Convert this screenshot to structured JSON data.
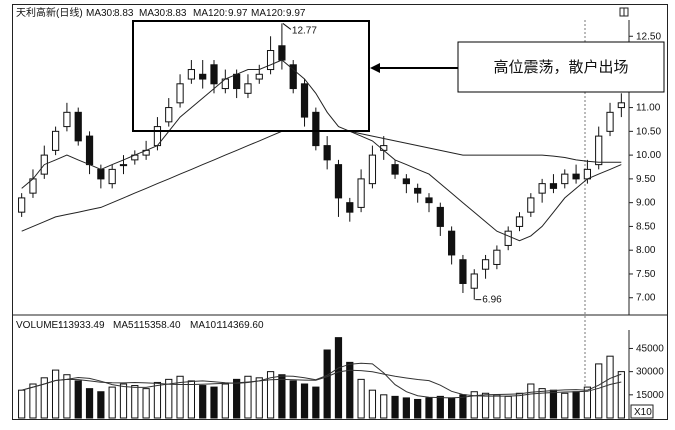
{
  "header": {
    "stock_name": "天利高新(日线)",
    "ma_items": [
      {
        "label": "MA30:",
        "value": "8.83"
      },
      {
        "label": "MA30:",
        "value": "8.83"
      },
      {
        "label": "MA120:",
        "value": "9.97"
      },
      {
        "label": "MA120:",
        "value": "9.97"
      }
    ]
  },
  "price_axis": {
    "ticks": [
      "12.50",
      "12.00",
      "11.50",
      "11.00",
      "10.50",
      "10.00",
      "9.50",
      "9.00",
      "8.50",
      "8.00",
      "7.50",
      "7.00"
    ],
    "high_label": "12.77",
    "low_label": "6.96"
  },
  "annotation": {
    "text": "高位震荡，散户出场"
  },
  "volume_header": {
    "items": [
      {
        "label": "VOLUME:",
        "value": "113933.49"
      },
      {
        "label": "MA5:",
        "value": "115358.40"
      },
      {
        "label": "MA10:",
        "value": "114369.60"
      }
    ]
  },
  "volume_axis": {
    "ticks": [
      "45000",
      "30000",
      "15000"
    ],
    "multiplier": "X10"
  },
  "chart_data": [
    {
      "type": "candlestick",
      "title": "天利高新(日线)",
      "ylim": [
        6.7,
        12.8
      ],
      "moving_averages": [
        {
          "name": "MA30",
          "value": 8.83,
          "values": [
            9.3,
            9.5,
            9.8,
            9.9,
            10.0,
            9.9,
            9.8,
            9.7,
            9.8,
            9.9,
            10.0,
            10.1,
            10.2,
            10.5,
            10.8,
            11.0,
            11.2,
            11.4,
            11.6,
            11.7,
            11.8,
            11.8,
            11.9,
            12.0,
            11.8,
            11.6,
            11.3,
            10.9,
            10.6,
            10.5,
            10.4,
            10.3,
            10.1,
            9.9,
            9.8,
            9.7,
            9.6,
            9.4,
            9.2,
            9.0,
            8.8,
            8.6,
            8.4,
            8.3,
            8.2,
            8.3,
            8.5,
            8.8,
            9.1,
            9.3,
            9.5,
            9.6,
            9.7,
            9.8
          ]
        },
        {
          "name": "MA120",
          "value": 9.97,
          "values": [
            8.4,
            8.5,
            8.6,
            8.7,
            8.75,
            8.8,
            8.85,
            8.9,
            9.0,
            9.1,
            9.2,
            9.3,
            9.4,
            9.5,
            9.6,
            9.7,
            9.8,
            9.9,
            10.0,
            10.1,
            10.2,
            10.3,
            10.4,
            10.5,
            10.5,
            10.5,
            10.5,
            10.5,
            10.5,
            10.5,
            10.45,
            10.4,
            10.35,
            10.3,
            10.25,
            10.2,
            10.15,
            10.1,
            10.05,
            10.0,
            10.0,
            10.0,
            10.0,
            10.0,
            10.0,
            10.0,
            10.0,
            9.98,
            9.95,
            9.9,
            9.87,
            9.85,
            9.85,
            9.85
          ]
        }
      ],
      "annotations": [
        "12.77",
        "6.96",
        "高位震荡，散户出场"
      ],
      "x": [
        1,
        2,
        3,
        4,
        5,
        6,
        7,
        8,
        9,
        10,
        11,
        12,
        13,
        14,
        15,
        16,
        17,
        18,
        19,
        20,
        21,
        22,
        23,
        24,
        25,
        26,
        27,
        28,
        29,
        30,
        31,
        32,
        33,
        34,
        35,
        36,
        37,
        38,
        39,
        40,
        41,
        42,
        43,
        44,
        45,
        46,
        47,
        48,
        49,
        50,
        51,
        52,
        53,
        54
      ],
      "open": [
        8.8,
        9.2,
        9.6,
        10.1,
        10.6,
        10.9,
        10.4,
        9.7,
        9.4,
        9.8,
        9.9,
        10.0,
        10.2,
        10.7,
        11.1,
        11.6,
        11.7,
        11.9,
        11.4,
        11.7,
        11.3,
        11.6,
        11.8,
        12.3,
        11.9,
        11.5,
        10.9,
        10.2,
        9.8,
        9.0,
        8.9,
        9.4,
        10.1,
        9.8,
        9.5,
        9.3,
        9.1,
        8.9,
        8.4,
        7.8,
        7.2,
        7.6,
        7.7,
        8.1,
        8.5,
        8.8,
        9.2,
        9.4,
        9.4,
        9.6,
        9.5,
        9.8,
        10.5,
        11.0
      ],
      "close": [
        9.1,
        9.5,
        10.0,
        10.5,
        10.9,
        10.3,
        9.8,
        9.5,
        9.7,
        9.8,
        10.0,
        10.1,
        10.6,
        11.0,
        11.5,
        11.8,
        11.6,
        11.5,
        11.6,
        11.4,
        11.5,
        11.7,
        12.2,
        12.0,
        11.4,
        10.8,
        10.2,
        9.9,
        9.1,
        8.8,
        9.5,
        10.0,
        10.2,
        9.6,
        9.4,
        9.2,
        9.0,
        8.5,
        7.9,
        7.3,
        7.5,
        7.8,
        8.0,
        8.4,
        8.7,
        9.1,
        9.4,
        9.3,
        9.6,
        9.5,
        9.7,
        10.4,
        10.9,
        11.1
      ],
      "high": [
        9.2,
        9.7,
        10.2,
        10.6,
        11.1,
        11.0,
        10.5,
        9.8,
        9.8,
        10.0,
        10.1,
        10.3,
        10.8,
        11.2,
        11.7,
        12.0,
        12.0,
        12.0,
        11.8,
        11.8,
        11.7,
        11.9,
        12.5,
        12.77,
        12.0,
        11.6,
        11.0,
        10.4,
        9.9,
        9.1,
        9.7,
        10.2,
        10.4,
        9.9,
        9.6,
        9.4,
        9.2,
        9.0,
        8.5,
        7.9,
        7.6,
        7.9,
        8.1,
        8.5,
        8.8,
        9.2,
        9.5,
        9.6,
        9.7,
        9.8,
        9.9,
        10.6,
        11.1,
        11.3
      ],
      "low": [
        8.7,
        9.1,
        9.5,
        10.0,
        10.5,
        10.2,
        9.6,
        9.3,
        9.3,
        9.6,
        9.8,
        9.9,
        10.1,
        10.6,
        11.0,
        11.5,
        11.4,
        11.3,
        11.3,
        11.2,
        11.2,
        11.5,
        11.7,
        11.8,
        11.3,
        10.6,
        10.1,
        9.7,
        8.7,
        8.6,
        8.8,
        9.3,
        9.9,
        9.5,
        9.2,
        9.0,
        8.8,
        8.3,
        7.7,
        7.1,
        6.96,
        7.4,
        7.6,
        8.0,
        8.4,
        8.7,
        9.0,
        9.2,
        9.3,
        9.4,
        9.4,
        9.7,
        10.4,
        10.8
      ]
    },
    {
      "type": "bar",
      "title": "VOLUME",
      "ylim": [
        0,
        55000
      ],
      "series": [
        {
          "name": "VOLUME",
          "value": 113933.49,
          "values": [
            18000,
            22000,
            26000,
            31000,
            28000,
            24000,
            19000,
            17000,
            20000,
            22000,
            21000,
            19000,
            23000,
            25000,
            27000,
            24000,
            21000,
            20000,
            22000,
            25000,
            27000,
            26000,
            30000,
            28000,
            24000,
            22000,
            20000,
            44000,
            52000,
            36000,
            25000,
            18000,
            15000,
            14000,
            13000,
            12000,
            13000,
            14000,
            13000,
            15000,
            17000,
            16000,
            15000,
            14000,
            16000,
            22000,
            19000,
            18000,
            16000,
            17000,
            20000,
            35000,
            40000,
            30000
          ]
        },
        {
          "name": "MA5",
          "value": 115358.4
        },
        {
          "name": "MA10",
          "value": 114369.6
        }
      ]
    }
  ]
}
